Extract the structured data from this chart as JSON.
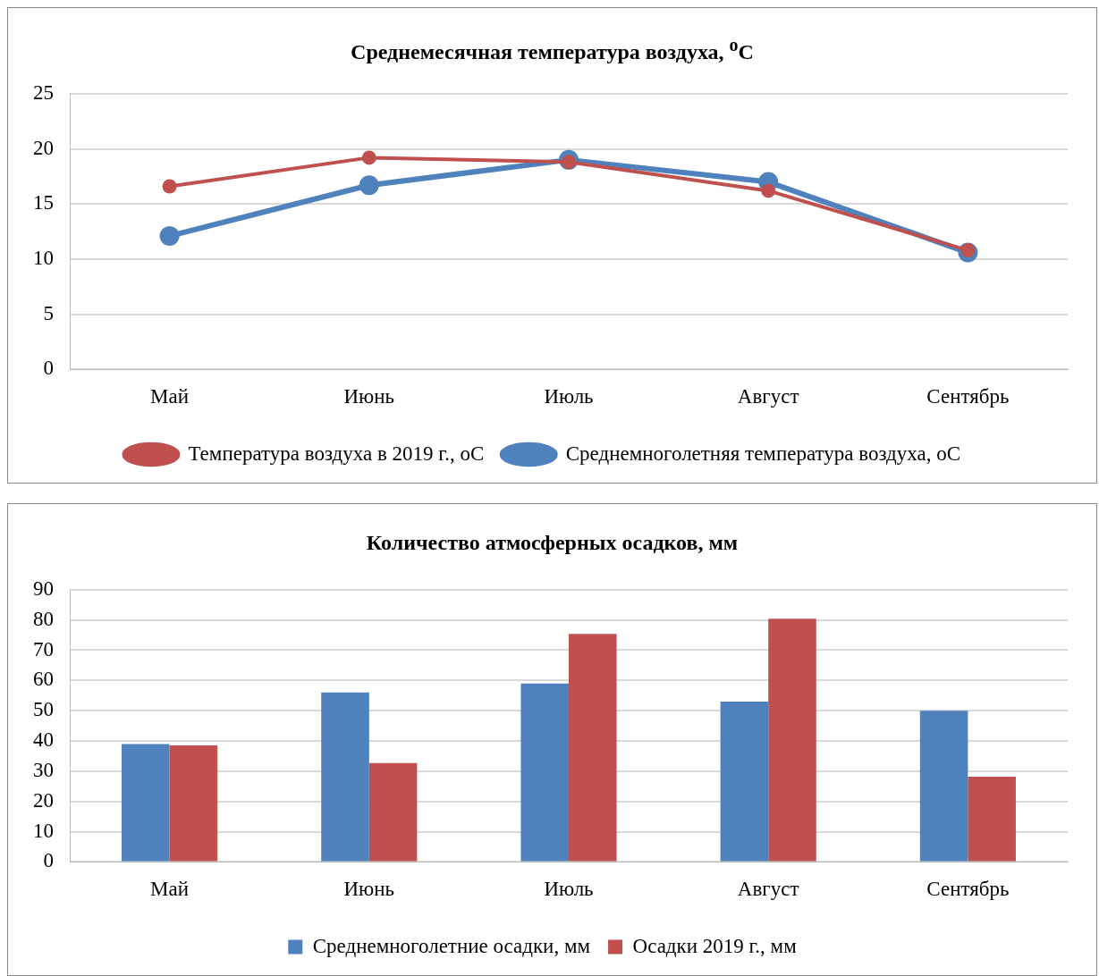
{
  "chart_data": [
    {
      "type": "line",
      "title": "Среднемесячная температура воздуха, $^{o}$С",
      "categories": [
        "Май",
        "Июнь",
        "Июль",
        "Август",
        "Сентябрь"
      ],
      "series": [
        {
          "name": "Среднемноголетняя температура воздуха, оС",
          "color": "#4f81bd",
          "values": [
            12.1,
            16.7,
            19.0,
            17.0,
            10.6
          ]
        },
        {
          "name": "Температура воздуха в 2019 г., оС",
          "color": "#c0504d",
          "values": [
            16.6,
            19.2,
            18.8,
            16.2,
            10.8
          ]
        }
      ],
      "ylim": [
        0,
        25
      ],
      "yticks": [
        0,
        5,
        10,
        15,
        20,
        25
      ],
      "grid": "y",
      "legend": "bottom",
      "marker": "circle",
      "line_style": "solid"
    },
    {
      "type": "bar",
      "title": "Количество атмосферных осадков, мм",
      "categories": [
        "Май",
        "Июнь",
        "Июль",
        "Август",
        "Сентябрь"
      ],
      "series": [
        {
          "name": "Среднемноголетние осадки, мм",
          "color": "#4f81bd",
          "values": [
            39,
            56,
            59,
            53,
            50
          ]
        },
        {
          "name": "Осадки 2019 г., мм",
          "color": "#c0504d",
          "values": [
            38.5,
            32.7,
            75.4,
            80.4,
            28.2
          ]
        }
      ],
      "ylim": [
        0,
        90
      ],
      "yticks": [
        0,
        10,
        20,
        30,
        40,
        50,
        60,
        70,
        80,
        90
      ],
      "grid": "y",
      "legend": "bottom"
    }
  ]
}
